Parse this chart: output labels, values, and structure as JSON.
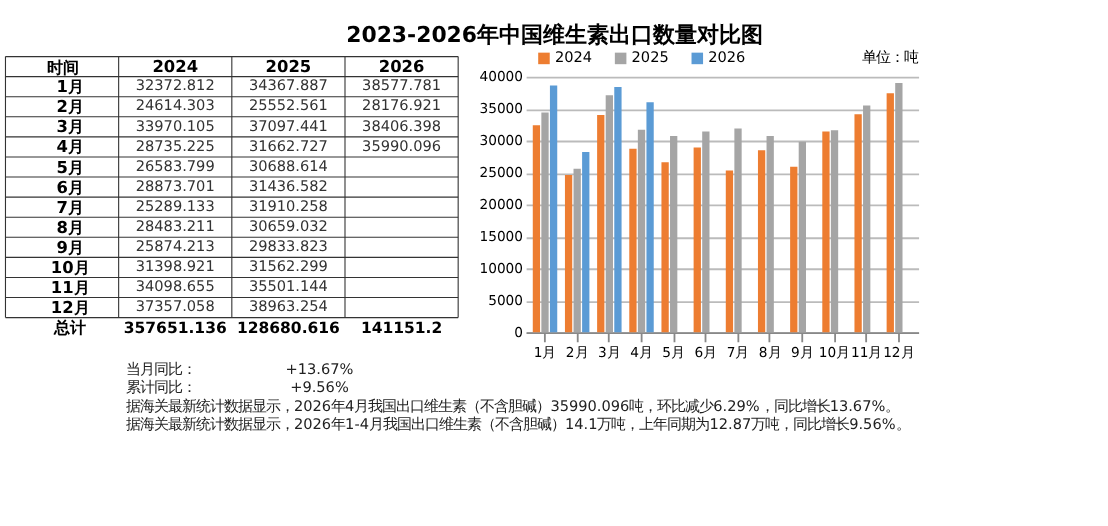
{
  "chart_data": [
    {
      "type": "bar",
      "title": "2023-2026年中国维生素出口数量对比图",
      "categories": [
        "1月",
        "2月",
        "3月",
        "4月",
        "5月",
        "6月",
        "7月",
        "8月",
        "9月",
        "10月",
        "11月",
        "12月"
      ],
      "series": [
        {
          "name": "2024",
          "color": "#ed7d31",
          "values": [
            32400,
            24600,
            34000,
            28700,
            26600,
            28900,
            25300,
            28500,
            25900,
            31400,
            34100,
            37400
          ]
        },
        {
          "name": "2025",
          "color": "#a5a5a5",
          "values": [
            34400,
            25600,
            37100,
            31700,
            30700,
            31400,
            31900,
            30700,
            29800,
            31600,
            35500,
            39000
          ]
        },
        {
          "name": "2026",
          "color": "#5b9bd5",
          "values": [
            38600,
            28200,
            38400,
            36000,
            null,
            null,
            null,
            null,
            null,
            null,
            null,
            null
          ]
        }
      ],
      "ylim": [
        0,
        40000
      ],
      "yticks": [
        0,
        5000,
        10000,
        15000,
        20000,
        25000,
        30000,
        35000,
        40000
      ],
      "grid": "y",
      "legend": "top",
      "annotations": [
        "单位：吨"
      ]
    },
    {
      "type": "heatmap",
      "ylabel": "时间",
      "data_labels": true,
      "categories": [
        "2024",
        "2025",
        "2026"
      ],
      "y_categories": [
        "1月",
        "2月",
        "3月",
        "4月",
        "5月",
        "6月",
        "7月",
        "8月",
        "9月",
        "10月",
        "11月",
        "12月",
        "总计"
      ],
      "cells": [
        [
          32372.812,
          34367.887,
          38577.781
        ],
        [
          24614.303,
          25552.561,
          28176.921
        ],
        [
          33970.105,
          37097.441,
          38406.398
        ],
        [
          28735.225,
          31662.727,
          35990.096
        ],
        [
          26583.799,
          30688.614,
          null
        ],
        [
          28873.701,
          31436.582,
          null
        ],
        [
          25289.133,
          31910.258,
          null
        ],
        [
          28483.211,
          30659.032,
          null
        ],
        [
          25874.213,
          29833.823,
          null
        ],
        [
          31398.921,
          31562.299,
          null
        ],
        [
          34098.655,
          35501.144,
          null
        ],
        [
          37357.058,
          38963.254,
          null
        ],
        [
          357651.136,
          128680.616,
          141151.2
        ]
      ],
      "annotations": [
        "当月同比：",
        "+13.67%",
        "累计同比：",
        "+9.56%",
        "据海关最新统计数据显示，2026年4月我国出口维生素（不含胆碱）35990.096吨，环比减少6.29%，同比增长13.67%。据海关最新统计数据显示，2026年1-4月我国出口维生素（不含胆碱）14.1万吨，上年同期为12.87万吨，同比增长9.56%。"
      ]
    }
  ]
}
